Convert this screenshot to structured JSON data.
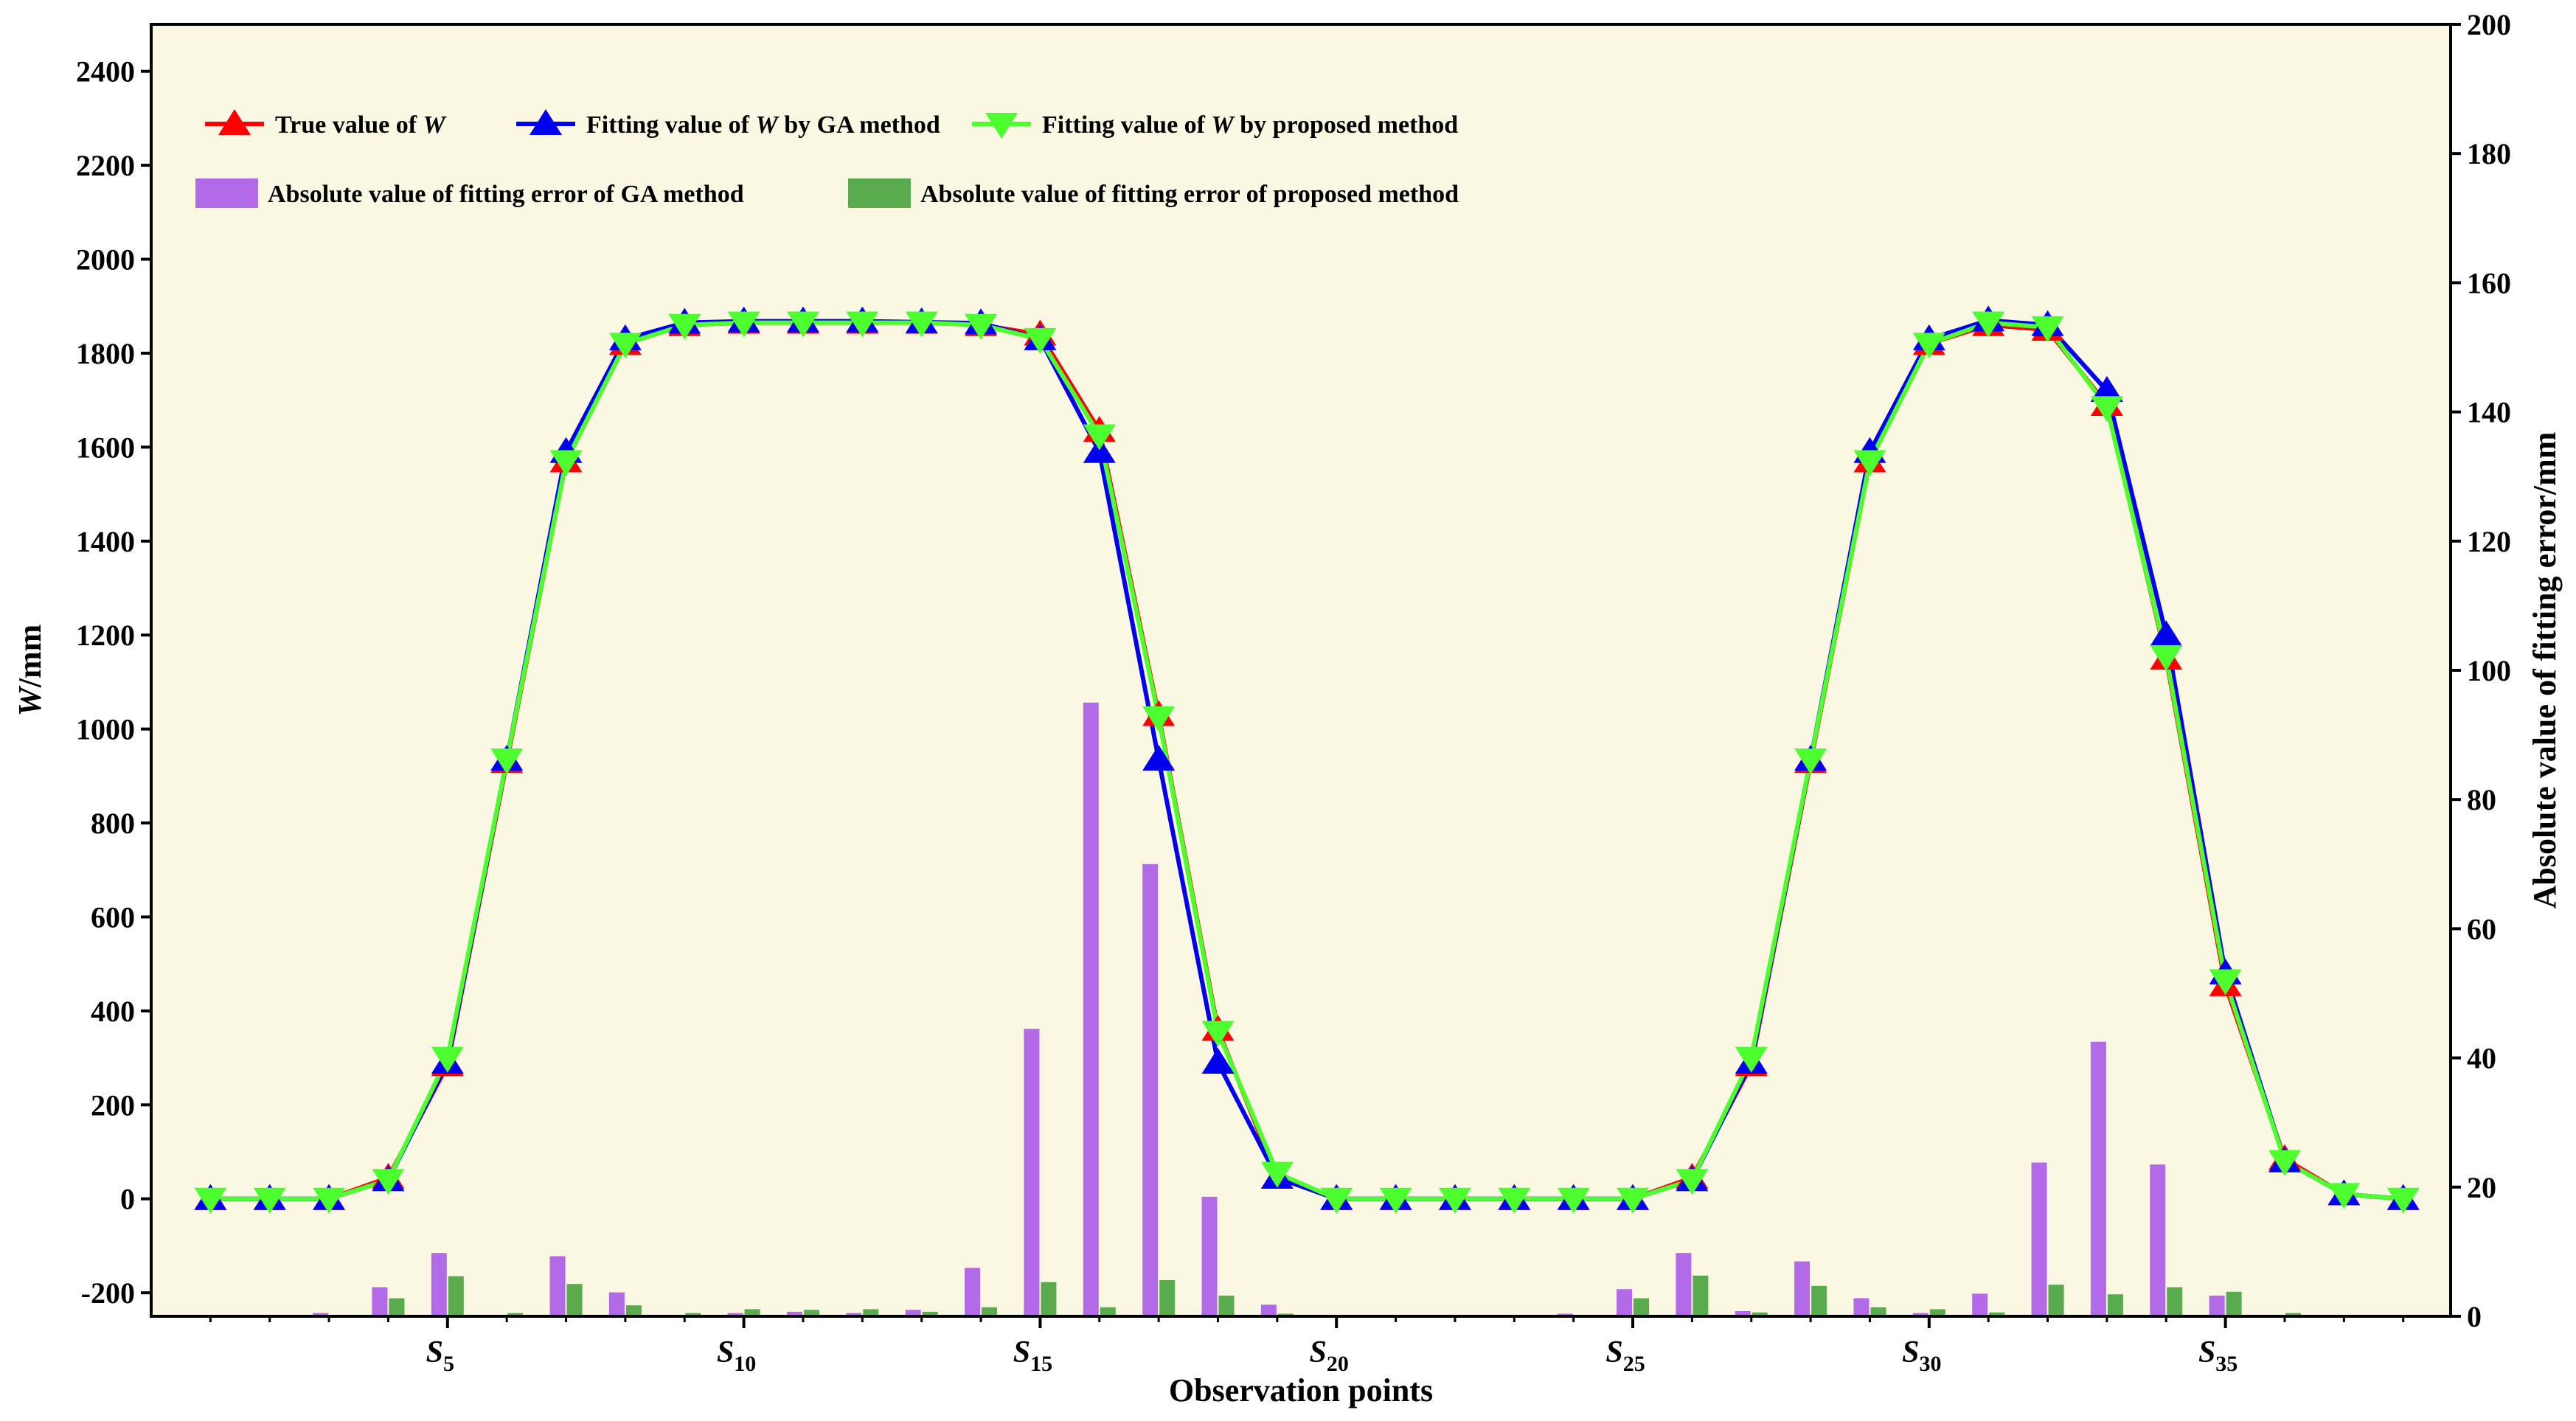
{
  "chart_data": {
    "type": "line+bar",
    "xlabel": "Observation points",
    "ylabel_left": "W/mm",
    "ylabel_left_italic": "W",
    "ylabel_left_unit": "/mm",
    "ylabel_right": "Absolute value of fitting error/mm",
    "ylim_left": [
      -250,
      2500
    ],
    "yticks_left": [
      -200,
      0,
      200,
      400,
      600,
      800,
      1000,
      1200,
      1400,
      1600,
      1800,
      2000,
      2200,
      2400
    ],
    "ylim_right": [
      0,
      200
    ],
    "yticks_right": [
      0,
      20,
      40,
      60,
      80,
      100,
      120,
      140,
      160,
      180,
      200
    ],
    "xlim": [
      0,
      38.8
    ],
    "x": [
      1,
      2,
      3,
      4,
      5,
      6,
      7,
      8,
      9,
      10,
      11,
      12,
      13,
      14,
      15,
      16,
      17,
      18,
      19,
      20,
      21,
      22,
      23,
      24,
      25,
      26,
      27,
      28,
      29,
      30,
      31,
      32,
      33,
      34,
      35,
      36,
      37,
      38
    ],
    "xticks": [
      {
        "pos": 5,
        "letter": "S",
        "sub": "5"
      },
      {
        "pos": 10,
        "letter": "S",
        "sub": "10"
      },
      {
        "pos": 15,
        "letter": "S",
        "sub": "15"
      },
      {
        "pos": 20,
        "letter": "S",
        "sub": "20"
      },
      {
        "pos": 25,
        "letter": "S",
        "sub": "25"
      },
      {
        "pos": 30,
        "letter": "S",
        "sub": "30"
      },
      {
        "pos": 35,
        "letter": "S",
        "sub": "35"
      }
    ],
    "grid": false,
    "legend_placement": "top-left",
    "background_color": "#faf7e3",
    "series": [
      {
        "name": "True value of W",
        "kind": "line",
        "axis": "left",
        "color": "#ff0000",
        "marker": "triangle-up",
        "values": [
          0,
          0,
          0,
          45,
          285,
          930,
          1570,
          1820,
          1860,
          1865,
          1865,
          1865,
          1865,
          1860,
          1840,
          1635,
          1030,
          360,
          45,
          0,
          0,
          0,
          0,
          0,
          0,
          45,
          285,
          930,
          1570,
          1820,
          1860,
          1850,
          1690,
          1150,
          455,
          85,
          10,
          0
        ]
      },
      {
        "name": "Fitting value of W by GA method",
        "kind": "line",
        "axis": "left",
        "color": "#0000ee",
        "marker": "triangle-up",
        "values": [
          0,
          0,
          0,
          40,
          290,
          935,
          1590,
          1830,
          1865,
          1868,
          1868,
          1868,
          1866,
          1864,
          1830,
          1590,
          935,
          290,
          45,
          0,
          0,
          0,
          0,
          0,
          0,
          40,
          290,
          935,
          1590,
          1830,
          1870,
          1860,
          1720,
          1200,
          480,
          80,
          10,
          0
        ]
      },
      {
        "name": "Fitting value of W by proposed method",
        "kind": "line",
        "axis": "left",
        "color": "#4dff2e",
        "marker": "triangle-down",
        "values": [
          0,
          0,
          0,
          40,
          300,
          935,
          1570,
          1820,
          1860,
          1865,
          1865,
          1865,
          1865,
          1860,
          1830,
          1625,
          1025,
          355,
          55,
          0,
          0,
          0,
          0,
          0,
          0,
          40,
          300,
          935,
          1570,
          1820,
          1865,
          1855,
          1685,
          1155,
          465,
          80,
          10,
          0
        ]
      },
      {
        "name": "Absolute value of fitting error of GA method",
        "kind": "bar",
        "axis": "right",
        "color": "#b36ae8",
        "values": [
          0,
          0,
          0.5,
          4.5,
          9.8,
          0,
          9.3,
          3.7,
          0,
          0.5,
          0.7,
          0.5,
          1,
          7.5,
          44.5,
          95,
          70,
          18.5,
          1.8,
          0,
          0,
          0,
          0,
          0.4,
          4.2,
          9.8,
          0.8,
          8.5,
          2.8,
          0.5,
          3.5,
          23.8,
          42.5,
          23.5,
          3.2,
          0,
          0,
          0
        ]
      },
      {
        "name": "Absolute value of fitting error of proposed method",
        "kind": "bar",
        "axis": "right",
        "color": "#5aaa4e",
        "values": [
          0,
          0,
          0,
          2.8,
          6.2,
          0.5,
          5,
          1.7,
          0.5,
          1.1,
          1,
          1.1,
          0.7,
          1.4,
          5.3,
          1.4,
          5.6,
          3.2,
          0.4,
          0,
          0,
          0,
          0,
          0,
          2.8,
          6.3,
          0.6,
          4.7,
          1.4,
          1.1,
          0.6,
          4.9,
          3.4,
          4.5,
          3.8,
          0.5,
          0,
          0
        ]
      }
    ],
    "legend": [
      {
        "series": 0,
        "prefix": "True value of ",
        "italic": "W",
        "suffix": ""
      },
      {
        "series": 1,
        "prefix": "Fitting value of ",
        "italic": "W",
        "suffix": " by GA method"
      },
      {
        "series": 2,
        "prefix": "Fitting value of ",
        "italic": "W",
        "suffix": " by proposed method"
      },
      {
        "series": 3,
        "prefix": "Absolute value of fitting error of GA method",
        "italic": "",
        "suffix": ""
      },
      {
        "series": 4,
        "prefix": "Absolute value of fitting error of proposed method",
        "italic": "",
        "suffix": ""
      }
    ]
  }
}
